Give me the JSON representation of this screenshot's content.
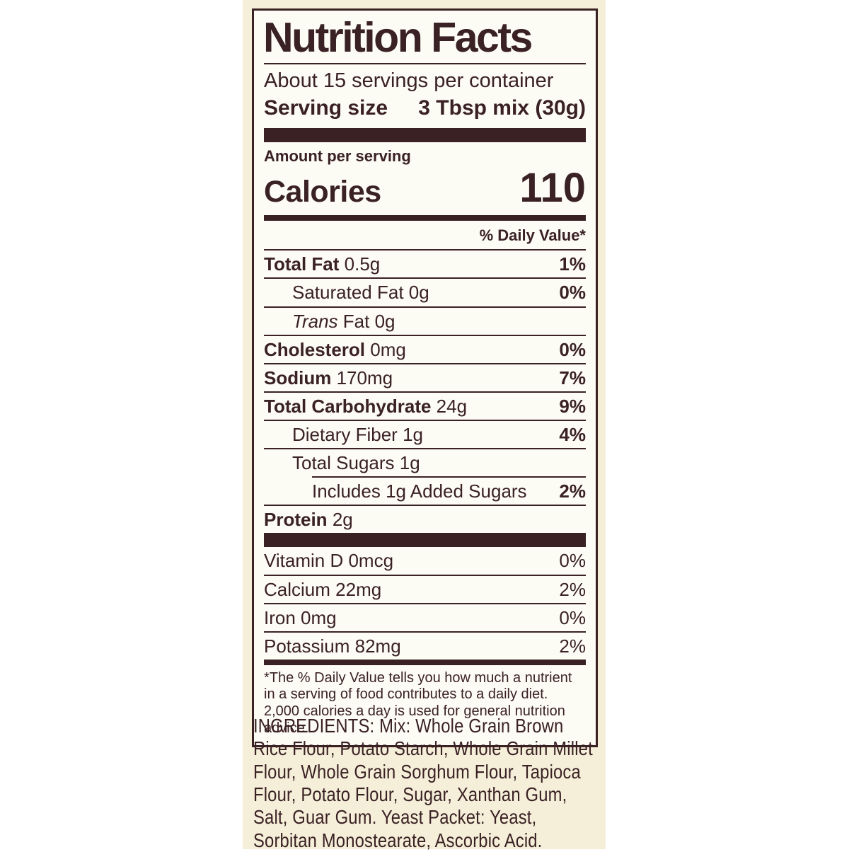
{
  "colors": {
    "ink": "#3a2124",
    "band": "#f5efd9",
    "label_background": "#fdfcf4",
    "page_background": "#ffffff"
  },
  "label": {
    "title": "Nutrition Facts",
    "servings_per_container": "About 15 servings per container",
    "serving_size": {
      "label": "Serving size",
      "value": "3 Tbsp mix (30g)"
    },
    "amount_per_serving": "Amount per serving",
    "calories": {
      "label": "Calories",
      "value": "110"
    },
    "daily_value_header": "% Daily Value*",
    "nutrient_rows": [
      {
        "name": "Total Fat",
        "amount": "0.5g",
        "dv": "1%"
      },
      {
        "name": "Saturated Fat",
        "amount": "0g",
        "dv": "0%"
      },
      {
        "name_italic": "Trans",
        "name": "Fat",
        "amount": "0g"
      },
      {
        "name": "Cholesterol",
        "amount": "0mg",
        "dv": "0%"
      },
      {
        "name": "Sodium",
        "amount": "170mg",
        "dv": "7%"
      },
      {
        "name": "Total Carbohydrate",
        "amount": "24g",
        "dv": "9%"
      },
      {
        "name": "Dietary Fiber",
        "amount": "1g",
        "dv": "4%"
      },
      {
        "name": "Total Sugars",
        "amount": "1g"
      },
      {
        "name": "Includes 1g Added Sugars",
        "dv": "2%"
      },
      {
        "name": "Protein",
        "amount": "2g"
      }
    ],
    "micronutrient_rows": [
      {
        "name": "Vitamin D",
        "amount": "0mcg",
        "dv": "0%"
      },
      {
        "name": "Calcium",
        "amount": "22mg",
        "dv": "2%"
      },
      {
        "name": "Iron",
        "amount": "0mg",
        "dv": "0%"
      },
      {
        "name": "Potassium",
        "amount": "82mg",
        "dv": "2%"
      }
    ],
    "footnote": "*The % Daily Value tells you how much a nutrient in a serving of food contributes to a daily diet. 2,000 calories a day is used for general nutrition advice."
  },
  "ingredients": {
    "text": "INGREDIENTS: Mix: Whole Grain Brown Rice Flour, Potato Starch, Whole Grain Millet Flour, Whole Grain Sorghum Flour, Tapioca Flour, Potato Flour, Sugar, Xanthan Gum, Salt, Guar Gum. Yeast Packet: Yeast, Sorbitan Monostearate, Ascorbic Acid."
  }
}
